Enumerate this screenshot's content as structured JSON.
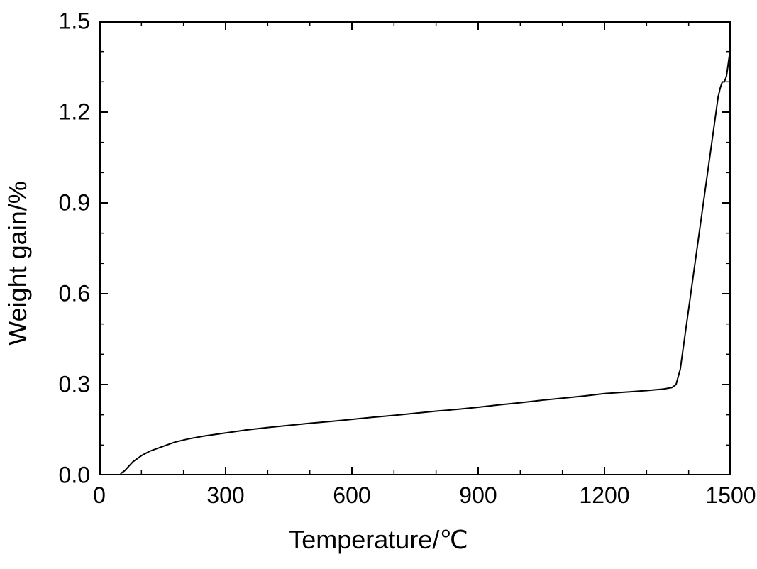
{
  "chart": {
    "type": "line",
    "xlabel": "Temperature/℃",
    "ylabel": "Weight gain/%",
    "xlim": [
      0,
      1500
    ],
    "ylim": [
      0,
      1.5
    ],
    "xtick_step": 300,
    "xtick_minor_step": 100,
    "ytick_step": 0.3,
    "ytick_minor_step": 0.1,
    "xticks": [
      0,
      300,
      600,
      900,
      1200,
      1500
    ],
    "yticks": [
      0.0,
      0.3,
      0.6,
      0.9,
      1.2,
      1.5
    ],
    "background_color": "#ffffff",
    "axis_color": "#000000",
    "line_color": "#000000",
    "line_width": 2,
    "label_fontsize": 36,
    "tick_fontsize": 32,
    "major_tick_length": 12,
    "minor_tick_length": 7,
    "data": {
      "x": [
        50,
        60,
        70,
        80,
        90,
        100,
        120,
        150,
        180,
        210,
        250,
        300,
        350,
        400,
        450,
        500,
        550,
        600,
        650,
        700,
        750,
        800,
        850,
        900,
        950,
        1000,
        1050,
        1100,
        1150,
        1200,
        1250,
        1300,
        1340,
        1360,
        1370,
        1380,
        1400,
        1420,
        1440,
        1460,
        1470,
        1475,
        1480,
        1485,
        1490,
        1500
      ],
      "y": [
        0.005,
        0.015,
        0.03,
        0.045,
        0.055,
        0.065,
        0.08,
        0.095,
        0.11,
        0.12,
        0.13,
        0.14,
        0.15,
        0.158,
        0.165,
        0.172,
        0.178,
        0.185,
        0.192,
        0.198,
        0.205,
        0.212,
        0.218,
        0.225,
        0.233,
        0.24,
        0.248,
        0.255,
        0.262,
        0.27,
        0.275,
        0.28,
        0.285,
        0.29,
        0.3,
        0.35,
        0.55,
        0.75,
        0.95,
        1.15,
        1.25,
        1.28,
        1.3,
        1.3,
        1.32,
        1.42
      ]
    }
  }
}
